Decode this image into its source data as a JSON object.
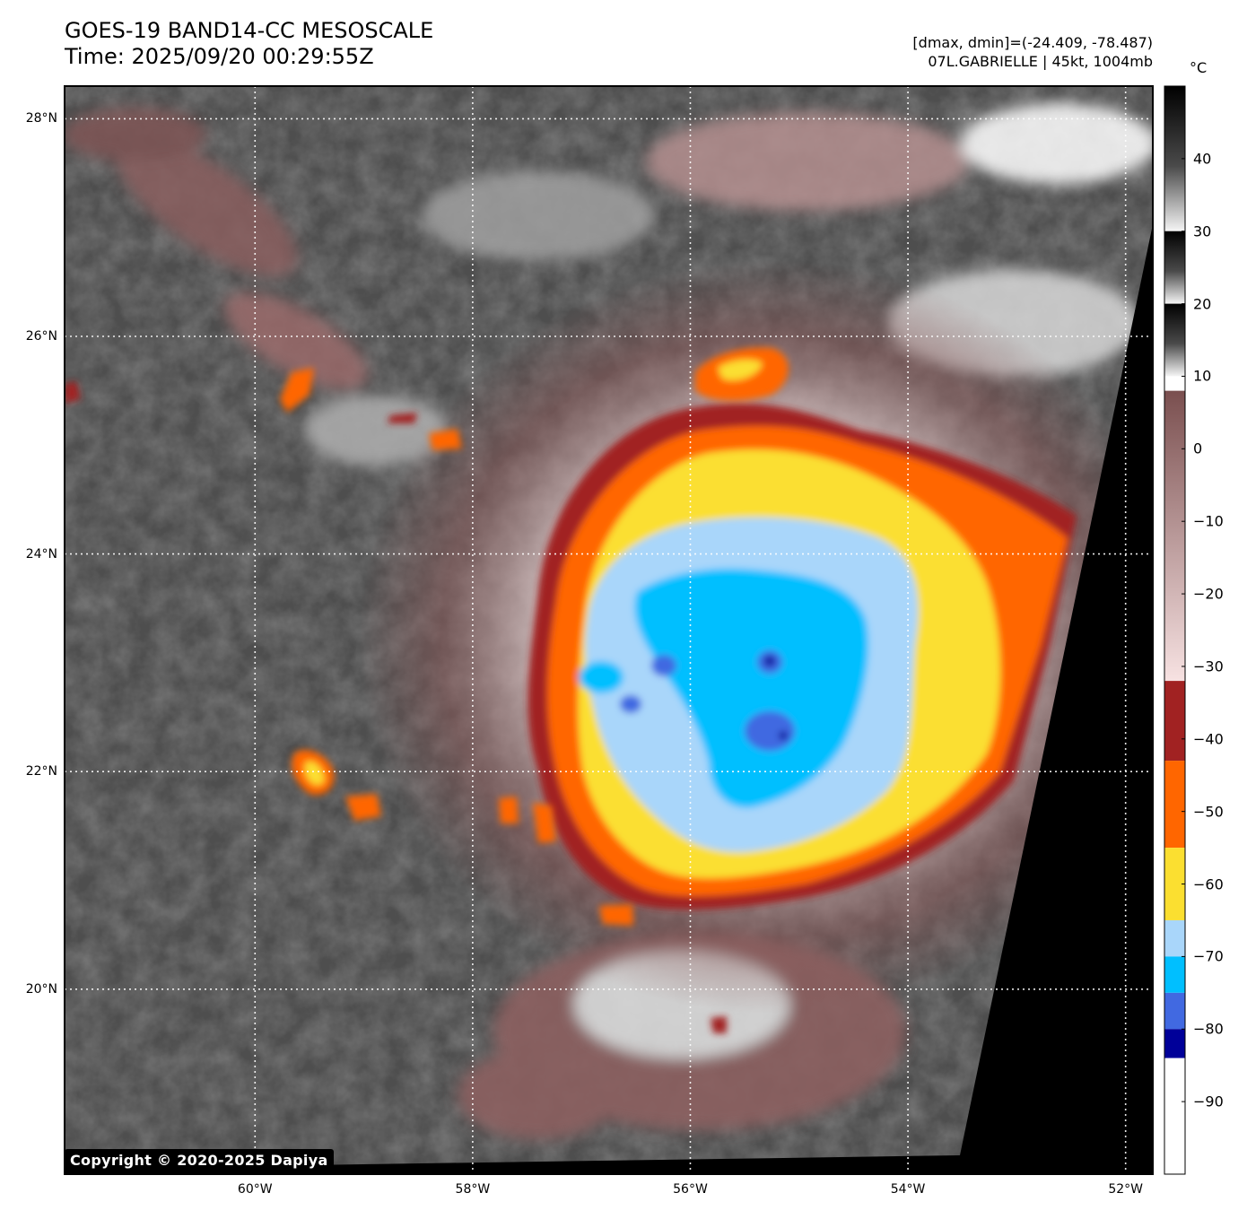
{
  "title": {
    "line1": "GOES-19 BAND14-CC MESOSCALE",
    "line2": "Time: 2025/09/20 00:29:55Z"
  },
  "meta": {
    "range_text": "[dmax, dmin]=(-24.409, -78.487)",
    "storm_text": "07L.GABRIELLE | 45kt, 1004mb"
  },
  "colorbar": {
    "unit": "°C",
    "min": -100,
    "max": 50,
    "ticks": [
      "40",
      "30",
      "20",
      "10",
      "0",
      "−10",
      "−20",
      "−30",
      "−40",
      "−50",
      "−60",
      "−70",
      "−80",
      "−90"
    ],
    "tick_values": [
      40,
      30,
      20,
      10,
      0,
      -10,
      -20,
      -30,
      -40,
      -50,
      -60,
      -70,
      -80,
      -90
    ],
    "bands": [
      {
        "from": 30,
        "to": 50,
        "color": "#000000"
      },
      {
        "from": 20,
        "to": 30,
        "color": "#444444"
      },
      {
        "from": 10,
        "to": 20,
        "color": "#bdbdbd"
      },
      {
        "from": 8,
        "to": 10,
        "color": "#ffffff"
      },
      {
        "from": -32,
        "to": 8,
        "color": "#7a4f4f",
        "gradient_to": "#f7e2e2"
      },
      {
        "from": -43,
        "to": -32,
        "color": "#a12222"
      },
      {
        "from": -55,
        "to": -43,
        "color": "#ff6600"
      },
      {
        "from": -65,
        "to": -55,
        "color": "#fbdf30"
      },
      {
        "from": -70,
        "to": -65,
        "color": "#a9d6fa"
      },
      {
        "from": -75,
        "to": -70,
        "color": "#00bfff"
      },
      {
        "from": -80,
        "to": -75,
        "color": "#4169e1"
      },
      {
        "from": -84,
        "to": -80,
        "color": "#000099"
      },
      {
        "from": -100,
        "to": -84,
        "color": "#ffffff"
      }
    ]
  },
  "axes": {
    "lat_labels": [
      "28°N",
      "26°N",
      "24°N",
      "22°N",
      "20°N"
    ],
    "lat_values": [
      28,
      26,
      24,
      22,
      20
    ],
    "lon_labels": [
      "60°W",
      "58°W",
      "56°W",
      "54°W",
      "52°W"
    ],
    "lon_values": [
      -60,
      -58,
      -56,
      -54,
      -52
    ],
    "lat_range": [
      18.3,
      28.3
    ],
    "lon_range": [
      -61.75,
      -51.75
    ]
  },
  "storm": {
    "name": "GABRIELLE",
    "id": "07L",
    "center_lon": -55.4,
    "center_lat": 22.85
  },
  "colors": {
    "scan_edge": "#000000",
    "grid": "#ffffff"
  },
  "copyright": "Copyright © 2020-2025 Dapiya"
}
